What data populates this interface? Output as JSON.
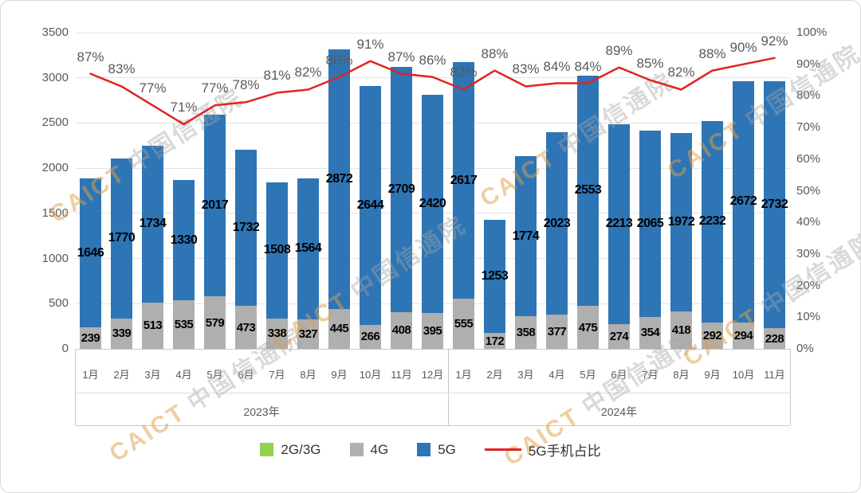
{
  "watermark": {
    "latin": "CAICT",
    "cjk": "中国信通院"
  },
  "colors": {
    "bar_2g3g": "#92D050",
    "bar_4g": "#AFAFAF",
    "bar_5g": "#2E75B6",
    "line": "#E02424",
    "axis_text": "#595959",
    "grid": "#E3E3E3"
  },
  "axes": {
    "left_ticks": [
      "3500",
      "3000",
      "2500",
      "2000",
      "1500",
      "1000",
      "500",
      "0"
    ],
    "right_ticks": [
      "100%",
      "90%",
      "80%",
      "70%",
      "60%",
      "50%",
      "40%",
      "30%",
      "20%",
      "10%",
      "0%"
    ]
  },
  "x_axis": {
    "groups": [
      {
        "year": "2023年",
        "months": [
          "1月",
          "2月",
          "3月",
          "4月",
          "5月",
          "6月",
          "7月",
          "8月",
          "9月",
          "10月",
          "11月",
          "12月"
        ]
      },
      {
        "year": "2024年",
        "months": [
          "1月",
          "2月",
          "3月",
          "4月",
          "5月",
          "6月",
          "7月",
          "8月",
          "9月",
          "10月",
          "11月"
        ]
      }
    ]
  },
  "legend": [
    {
      "label": "2G/3G"
    },
    {
      "label": "4G"
    },
    {
      "label": "5G"
    },
    {
      "label": "5G手机占比"
    }
  ],
  "chart_data": {
    "type": "stacked-bar+line",
    "title": "",
    "categories": [
      "2023-1月",
      "2023-2月",
      "2023-3月",
      "2023-4月",
      "2023-5月",
      "2023-6月",
      "2023-7月",
      "2023-8月",
      "2023-9月",
      "2023-10月",
      "2023-11月",
      "2023-12月",
      "2024-1月",
      "2024-2月",
      "2024-3月",
      "2024-4月",
      "2024-5月",
      "2024-6月",
      "2024-7月",
      "2024-8月",
      "2024-9月",
      "2024-10月",
      "2024-11月"
    ],
    "series": [
      {
        "name": "2G/3G",
        "values": [
          0,
          0,
          0,
          0,
          0,
          0,
          0,
          0,
          0,
          0,
          0,
          0,
          0,
          0,
          0,
          0,
          0,
          0,
          0,
          0,
          0,
          0,
          0
        ]
      },
      {
        "name": "4G",
        "values": [
          239,
          339,
          513,
          535,
          579,
          473,
          338,
          327,
          445,
          266,
          408,
          395,
          555,
          172,
          358,
          377,
          475,
          274,
          354,
          418,
          292,
          294,
          228
        ]
      },
      {
        "name": "5G",
        "values": [
          1646,
          1770,
          1734,
          1330,
          2017,
          1732,
          1508,
          1564,
          2872,
          2644,
          2709,
          2420,
          2617,
          1253,
          1774,
          2023,
          2553,
          2213,
          2065,
          1972,
          2232,
          2672,
          2732
        ]
      }
    ],
    "line_series": {
      "name": "5G手机占比",
      "values_pct": [
        87,
        83,
        77,
        71,
        77,
        78,
        81,
        82,
        86,
        91,
        87,
        86,
        82,
        88,
        83,
        84,
        84,
        89,
        85,
        82,
        88,
        90,
        92
      ],
      "labels": [
        "87%",
        "83%",
        "77%",
        "71%",
        "77%",
        "78%",
        "81%",
        "82%",
        "86%",
        "91%",
        "87%",
        "86%",
        "82%",
        "88%",
        "83%",
        "84%",
        "84%",
        "89%",
        "85%",
        "82%",
        "88%",
        "90%",
        "92%"
      ]
    },
    "ylim_left": [
      0,
      3500
    ],
    "ylim_right_pct": [
      0,
      100
    ],
    "grid": "horizontal",
    "legend_position": "bottom"
  }
}
